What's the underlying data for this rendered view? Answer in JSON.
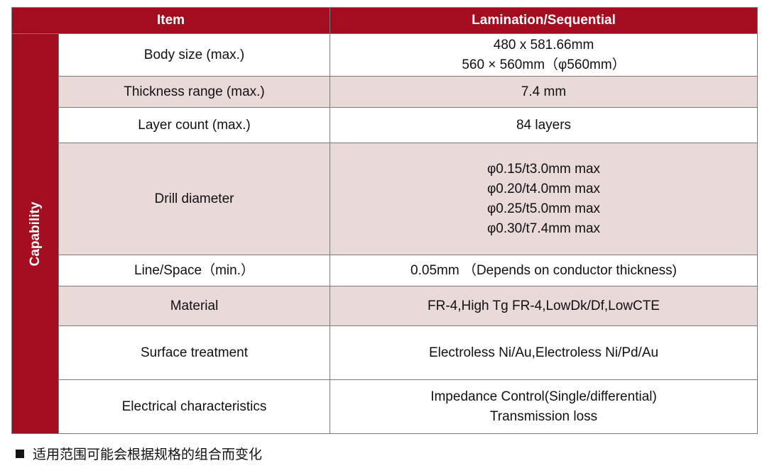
{
  "table": {
    "headers": [
      "Item",
      "Lamination/Sequential"
    ],
    "side_label": "Capability",
    "rows": [
      {
        "item": "Body size (max.)",
        "values": [
          "480 x 581.66mm",
          "560 × 560mm（φ560mm）"
        ]
      },
      {
        "item": "Thickness range  (max.)",
        "values": [
          "7.4 mm"
        ]
      },
      {
        "item": "Layer count (max.)",
        "values": [
          "84  layers"
        ]
      },
      {
        "item": "Drill diameter",
        "values": [
          "φ0.15/t3.0mm max",
          "φ0.20/t4.0mm max",
          "φ0.25/t5.0mm max",
          "φ0.30/t7.4mm max"
        ]
      },
      {
        "item": "Line/Space（min.）",
        "values": [
          "0.05mm （Depends on conductor thickness)"
        ]
      },
      {
        "item": "Material",
        "values": [
          "FR-4,High Tg FR-4,LowDk/Df,LowCTE"
        ]
      },
      {
        "item": "Surface treatment",
        "values": [
          "Electroless Ni/Au,Electroless Ni/Pd/Au"
        ]
      },
      {
        "item": "Electrical characteristics",
        "values": [
          "Impedance Control(Single/differential)",
          "Transmission loss"
        ]
      }
    ]
  },
  "footnote": "适用范围可能会根据规格的组合而变化",
  "colors": {
    "header_bg": "#a30d1f",
    "shade_row": "#e9d9d9",
    "text": "#111111"
  }
}
